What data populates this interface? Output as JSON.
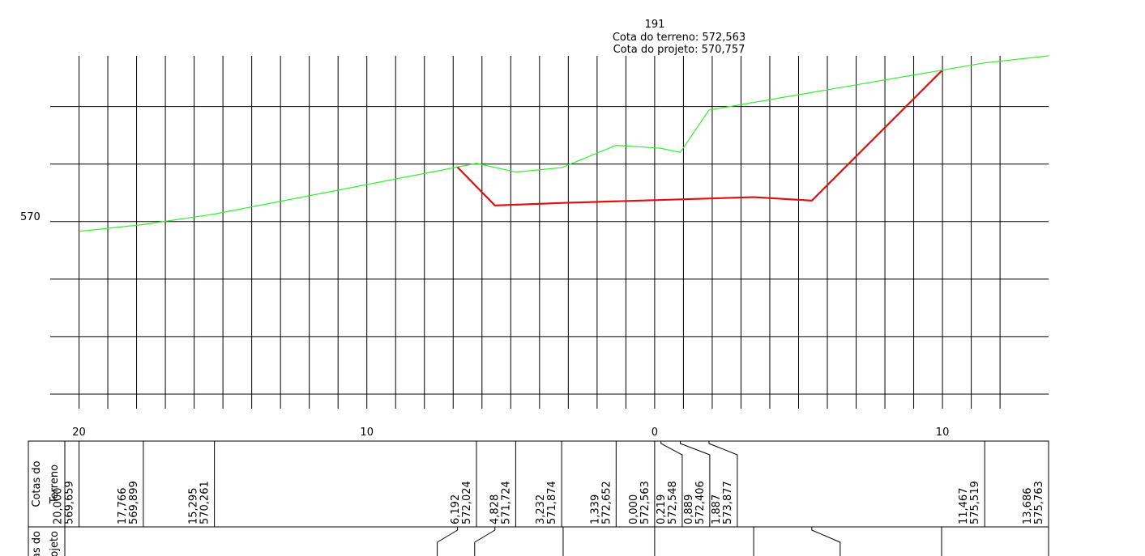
{
  "chart_data": {
    "type": "line",
    "annotations": [
      "191",
      "Cota do terreno: 572,563",
      "Cota do projeto: 570,757"
    ],
    "xlim": [
      -21,
      13.686
    ],
    "ylim": [
      564,
      575.763
    ],
    "xticks": [
      {
        "value": -20,
        "label": "20"
      },
      {
        "value": -10,
        "label": "10"
      },
      0,
      {
        "value": 10,
        "label": "10"
      }
    ],
    "xgrid": [
      -20,
      -19,
      -18,
      -17,
      -16,
      -15,
      -14,
      -13,
      -12,
      -11,
      -10,
      -9,
      -8,
      -7,
      -6,
      -5,
      -4,
      -3,
      -2,
      -1,
      0,
      1,
      2,
      3,
      4,
      5,
      6,
      7,
      8,
      9,
      10,
      11,
      12
    ],
    "yticks": [
      570
    ],
    "ygrid": [
      564,
      566,
      568,
      570,
      572,
      574
    ],
    "table_headers": [
      [
        "Cotas do",
        "Terreno"
      ],
      [
        "Cotas do",
        "projeto"
      ]
    ],
    "series": [
      {
        "color": "#33ee33",
        "x": [
          -20,
          -17.766,
          -15.295,
          -6.192,
          -4.828,
          -3.232,
          -1.339,
          0,
          0.219,
          0.889,
          1.887,
          11.467,
          13.686
        ],
        "x_labels": [
          "20,000",
          "17,766",
          "15,295",
          "6,192",
          "4,828",
          "3,232",
          "1,339",
          "0,000",
          "0,219",
          "0,889",
          "1,887",
          "11,467",
          "13,686"
        ],
        "values": [
          569.659,
          569.899,
          570.261,
          572.024,
          571.724,
          571.874,
          572.652,
          572.563,
          572.548,
          572.406,
          573.877,
          575.519,
          575.763
        ],
        "value_labels": [
          "569,659",
          "569,899",
          "570,261",
          "572,024",
          "571,724",
          "571,874",
          "572,652",
          "572,563",
          "572,548",
          "572,406",
          "573,877",
          "575,519",
          "575,763"
        ]
      },
      {
        "color": "#e01010",
        "x": [
          -6.85,
          -5.55,
          -3.18,
          3.44,
          5.46,
          9.97
        ],
        "values": [
          571.89,
          570.56,
          570.65,
          570.85,
          570.73,
          575.24
        ]
      }
    ]
  }
}
